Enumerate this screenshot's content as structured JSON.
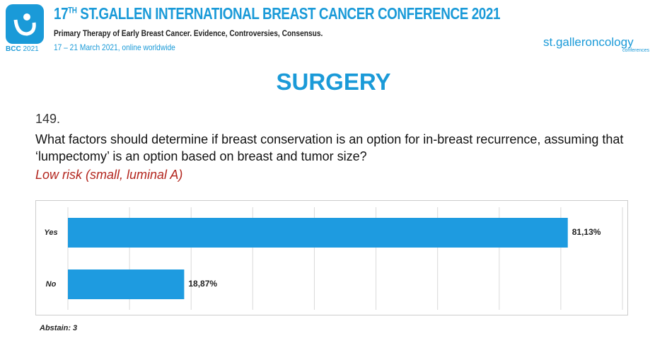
{
  "header": {
    "logo_text": "BCC",
    "logo_year": "2021",
    "title_number": "17",
    "title_ordinal": "TH",
    "title_rest": "ST.GALLEN INTERNATIONAL BREAST CANCER CONFERENCE 2021",
    "subtitle": "Primary Therapy of Early Breast Cancer. Evidence, Controversies, Consensus.",
    "date": "17 – 21 March 2021, online worldwide",
    "brand": "st.galleroncology",
    "brand_sub": "conferences"
  },
  "slide": {
    "title": "SURGERY",
    "number": "149.",
    "question": "What factors should determine if breast conservation is an option for in-breast recurrence, assuming that ‘lumpectomy’ is an option based on breast and tumor size?",
    "condition": "Low risk (small, luminal A)"
  },
  "chart_data": {
    "type": "hbar",
    "categories": [
      "Yes",
      "No"
    ],
    "values": [
      81.13,
      18.87
    ],
    "value_labels": [
      "81,13%",
      "18,87%"
    ],
    "color": "#1e9be0",
    "xlim": [
      0,
      90
    ],
    "xticks": [
      0,
      10,
      20,
      30,
      40,
      50,
      60,
      70,
      80,
      90
    ],
    "grid": true,
    "note": "Abstain: 3"
  }
}
